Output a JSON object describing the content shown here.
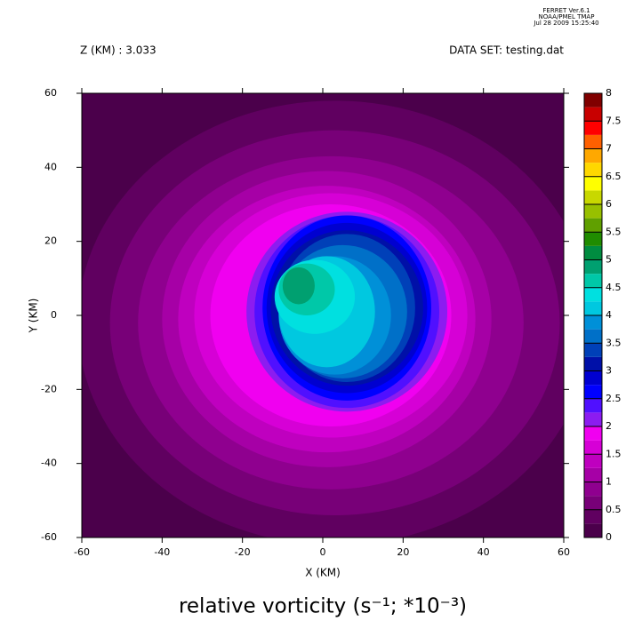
{
  "header": [
    "FERRET Ver.6.1",
    "NOAA/PMEL TMAP",
    "Jul 28 2009 15:25:40"
  ],
  "chart_data": {
    "type": "contour",
    "title": "relative vorticity (s⁻¹; *10⁻³)",
    "subtitle_left": "Z (KM) : 3.033",
    "subtitle_right": "DATA SET: testing.dat",
    "x_label": "X (KM)",
    "y_label": "Y (KM)",
    "xlim": [
      -60,
      60
    ],
    "ylim": [
      -60,
      60
    ],
    "xticks": [
      -60,
      -40,
      -20,
      0,
      20,
      40,
      60
    ],
    "yticks": [
      -60,
      -40,
      -20,
      0,
      20,
      40,
      60
    ],
    "levels": [
      0,
      0.25,
      0.5,
      0.75,
      1,
      1.25,
      1.5,
      1.75,
      2,
      2.25,
      2.5,
      2.75,
      3,
      3.25,
      3.5,
      3.75,
      4,
      4.25,
      4.5,
      4.75,
      5,
      5.25,
      5.5,
      5.75,
      6,
      6.25,
      6.5,
      6.75,
      7,
      7.25,
      7.5,
      7.75,
      8
    ],
    "colors": [
      "#4b004b",
      "#600060",
      "#780078",
      "#8f008f",
      "#a600a6",
      "#bf00bf",
      "#d600d6",
      "#f000f0",
      "#8c1cf0",
      "#5010ff",
      "#0000ff",
      "#0000d0",
      "#0010a8",
      "#0040b8",
      "#0070c8",
      "#0090d8",
      "#00c8e0",
      "#00e0e0",
      "#00c8a8",
      "#00a070",
      "#008c40",
      "#208c00",
      "#60a000",
      "#98c000",
      "#c8d800",
      "#ffff00",
      "#ffd800",
      "#ffa800",
      "#ff6000",
      "#ff0000",
      "#c80000",
      "#800000"
    ],
    "colorbar_ticks": [
      0,
      0.5,
      1,
      1.5,
      2,
      2.5,
      3,
      3.5,
      4,
      4.5,
      5,
      5.5,
      6,
      6.5,
      7,
      7.5,
      8
    ],
    "regions": [
      {
        "level": 0.25,
        "x": 3,
        "y": -2,
        "rx": 64,
        "ry": 60
      },
      {
        "level": 0.5,
        "x": 3,
        "y": -2,
        "rx": 56,
        "ry": 52
      },
      {
        "level": 0.75,
        "x": 2,
        "y": -2,
        "rx": 48,
        "ry": 45
      },
      {
        "level": 1,
        "x": 1,
        "y": -1,
        "rx": 41,
        "ry": 40
      },
      {
        "level": 1.25,
        "x": 1,
        "y": -1,
        "rx": 37,
        "ry": 36
      },
      {
        "level": 1.5,
        "x": 2,
        "y": 0,
        "rx": 34,
        "ry": 33
      },
      {
        "level": 1.75,
        "x": 2,
        "y": 0,
        "rx": 30,
        "ry": 30
      },
      {
        "level": 2,
        "x": 6,
        "y": 1,
        "rx": 25,
        "ry": 27
      },
      {
        "level": 2.25,
        "x": 6,
        "y": 1,
        "rx": 23,
        "ry": 26
      },
      {
        "level": 2.5,
        "x": 6,
        "y": 2,
        "rx": 21,
        "ry": 25
      },
      {
        "level": 2.75,
        "x": 6,
        "y": 2,
        "rx": 20,
        "ry": 23
      },
      {
        "level": 3,
        "x": 6,
        "y": 2,
        "rx": 19,
        "ry": 21
      },
      {
        "level": 3.25,
        "x": 6,
        "y": 2,
        "rx": 17,
        "ry": 20
      },
      {
        "level": 3.5,
        "x": 5,
        "y": 1,
        "rx": 16,
        "ry": 18
      },
      {
        "level": 3.75,
        "x": 3,
        "y": 0,
        "rx": 14,
        "ry": 16
      },
      {
        "level": 4,
        "x": 1,
        "y": 1,
        "rx": 12,
        "ry": 15
      },
      {
        "level": 4.25,
        "x": -2,
        "y": 5,
        "rx": 10,
        "ry": 10
      },
      {
        "level": 4.5,
        "x": -4,
        "y": 7,
        "rx": 7,
        "ry": 7
      },
      {
        "level": 4.75,
        "x": -6,
        "y": 8,
        "rx": 4,
        "ry": 5
      }
    ]
  }
}
